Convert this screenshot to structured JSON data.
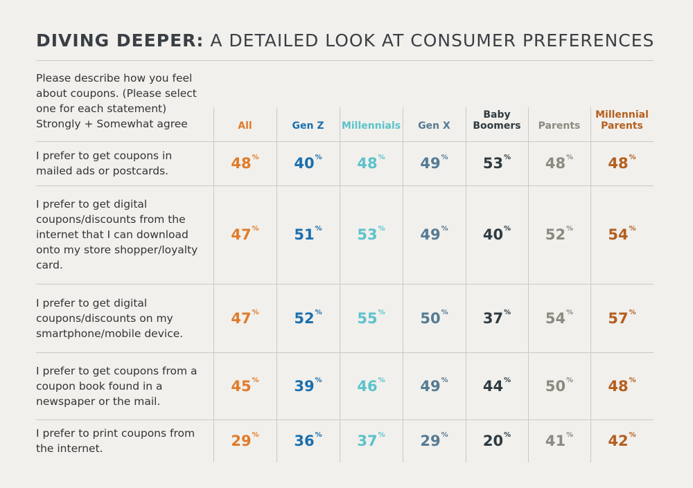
{
  "header": {
    "title_bold": "DIVING DEEPER:",
    "title_rest": "A DETAILED LOOK AT CONSUMER PREFERENCES"
  },
  "table": {
    "question": "Please describe how you feel about coupons. (Please select one for each statement)",
    "question_note": "Strongly + Somewhat agree",
    "unit": "%",
    "columns": [
      {
        "label": "All",
        "color": "#e07b2a"
      },
      {
        "label": "Gen Z",
        "color": "#1a6fae"
      },
      {
        "label": "Millennials",
        "color": "#5bc2cc"
      },
      {
        "label": "Gen X",
        "color": "#557a93"
      },
      {
        "label": "Baby Boomers",
        "color": "#2e3a40"
      },
      {
        "label": "Parents",
        "color": "#8a8a80"
      },
      {
        "label": "Millennial Parents",
        "color": "#b45e1e"
      }
    ],
    "rows": [
      {
        "statement": "I prefer to get coupons in mailed ads or postcards.",
        "values": [
          48,
          40,
          48,
          49,
          53,
          48,
          48
        ]
      },
      {
        "statement": "I prefer to get digital coupons/discounts from the internet that I can download onto my store shopper/loyalty card.",
        "values": [
          47,
          51,
          53,
          49,
          40,
          52,
          54
        ]
      },
      {
        "statement": "I prefer to get digital coupons/discounts on my smartphone/mobile device.",
        "values": [
          47,
          52,
          55,
          50,
          37,
          54,
          57
        ]
      },
      {
        "statement": "I prefer to get coupons from a coupon book found in a newspaper or the mail.",
        "values": [
          45,
          39,
          46,
          49,
          44,
          50,
          48
        ]
      },
      {
        "statement": "I prefer to print coupons from the internet.",
        "values": [
          29,
          36,
          37,
          29,
          20,
          41,
          42
        ]
      }
    ]
  }
}
